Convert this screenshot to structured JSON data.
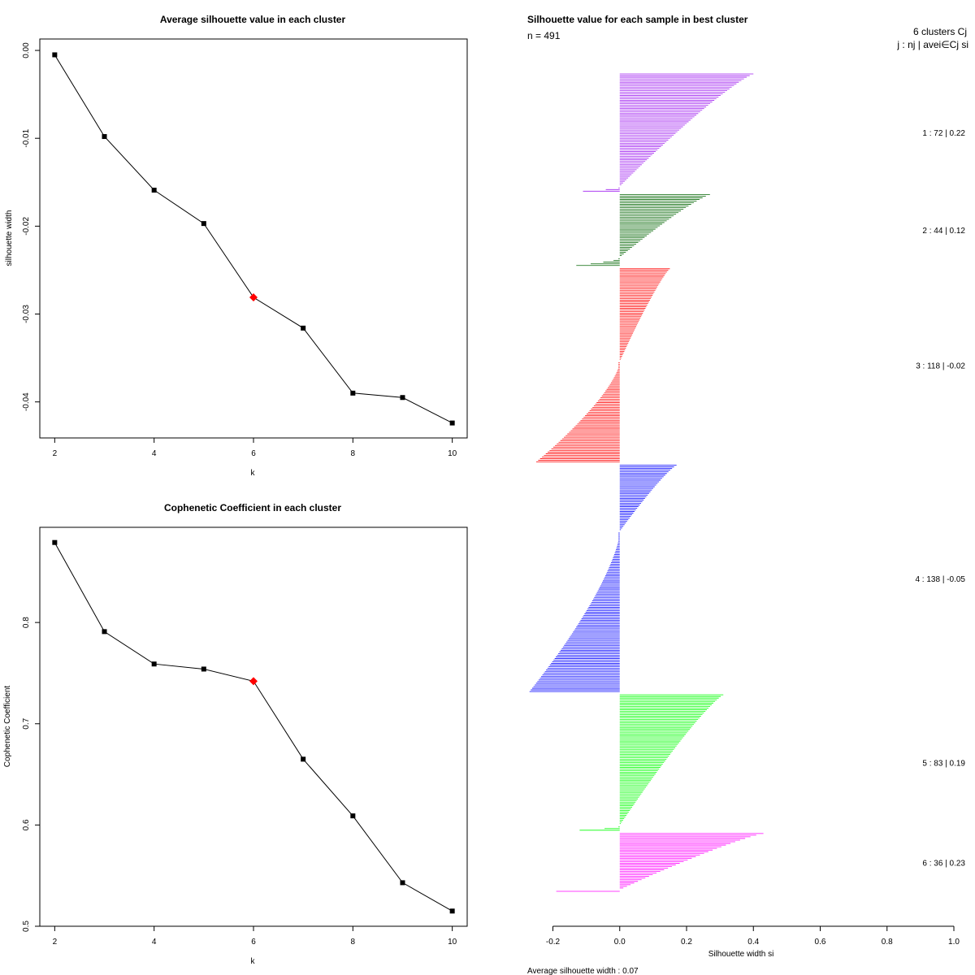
{
  "chart_data": [
    {
      "type": "line",
      "title": "Average silhouette value in each cluster",
      "xlabel": "k",
      "ylabel": "silhouette width",
      "x": [
        2,
        3,
        4,
        5,
        6,
        7,
        8,
        9,
        10
      ],
      "y": [
        -0.0005,
        -0.0098,
        -0.0159,
        -0.0197,
        -0.0281,
        -0.0316,
        -0.039,
        -0.0395,
        -0.0424
      ],
      "highlight_x": 6,
      "xlim": [
        1.7,
        10.3
      ],
      "ylim": [
        -0.0441,
        0.0013
      ],
      "xticks": [
        2,
        4,
        6,
        8,
        10
      ],
      "yticks": [
        0.0,
        -0.01,
        -0.02,
        -0.03,
        -0.04
      ],
      "ytick_labels": [
        "0.00",
        "-0.01",
        "-0.02",
        "-0.03",
        "-0.04"
      ],
      "colors": {
        "line": "#000000",
        "highlight": "#ff0000"
      }
    },
    {
      "type": "line",
      "title": "Cophenetic Coefficient in each cluster",
      "xlabel": "k",
      "ylabel": "Cophenetic Coefficient",
      "x": [
        2,
        3,
        4,
        5,
        6,
        7,
        8,
        9,
        10
      ],
      "y": [
        0.879,
        0.791,
        0.759,
        0.754,
        0.742,
        0.665,
        0.609,
        0.543,
        0.515
      ],
      "highlight_x": 6,
      "xlim": [
        1.7,
        10.3
      ],
      "ylim": [
        0.5,
        0.894
      ],
      "xticks": [
        2,
        4,
        6,
        8,
        10
      ],
      "yticks": [
        0.5,
        0.6,
        0.7,
        0.8
      ],
      "ytick_labels": [
        "0.5",
        "0.6",
        "0.7",
        "0.8"
      ],
      "colors": {
        "line": "#000000",
        "highlight": "#ff0000"
      }
    },
    {
      "type": "bar",
      "orientation": "horizontal",
      "title": "Silhouette value for each sample in best cluster",
      "n_label": "n = 491",
      "xlabel": "Silhouette width si",
      "xlim": [
        -0.2,
        1.0
      ],
      "xticks": [
        -0.2,
        0.0,
        0.2,
        0.4,
        0.6,
        0.8,
        1.0
      ],
      "xtick_labels": [
        "-0.2",
        "0.0",
        "0.2",
        "0.4",
        "0.6",
        "0.8",
        "1.0"
      ],
      "header_line1": "6 clusters Cj",
      "header_line2": "j : nj | avei∈Cj si",
      "footer": "Average silhouette width : 0.07",
      "clusters": [
        {
          "j": 1,
          "n": 72,
          "avg": 0.22,
          "label": "1 :  72  |  0.22",
          "color": "#a020f0",
          "max": 0.4,
          "min": -0.11,
          "neg_frac": 0.04
        },
        {
          "j": 2,
          "n": 44,
          "avg": 0.12,
          "label": "2 :  44  |  0.12",
          "color": "#006400",
          "max": 0.27,
          "min": -0.13,
          "neg_frac": 0.12
        },
        {
          "j": 3,
          "n": 118,
          "avg": -0.02,
          "label": "3 :  118  |  -0.02",
          "color": "#ff0000",
          "max": 0.15,
          "min": -0.25,
          "neg_frac": 0.52
        },
        {
          "j": 4,
          "n": 138,
          "avg": -0.05,
          "label": "4 :  138  |  -0.05",
          "color": "#0000ff",
          "max": 0.17,
          "min": -0.27,
          "neg_frac": 0.7
        },
        {
          "j": 5,
          "n": 83,
          "avg": 0.19,
          "label": "5 :  83  |  0.19",
          "color": "#00ff00",
          "max": 0.31,
          "min": -0.12,
          "neg_frac": 0.04
        },
        {
          "j": 6,
          "n": 36,
          "avg": 0.23,
          "label": "6 :  36  |  0.23",
          "color": "#ff00ff",
          "max": 0.43,
          "min": -0.19,
          "neg_frac": 0.04
        }
      ]
    }
  ]
}
